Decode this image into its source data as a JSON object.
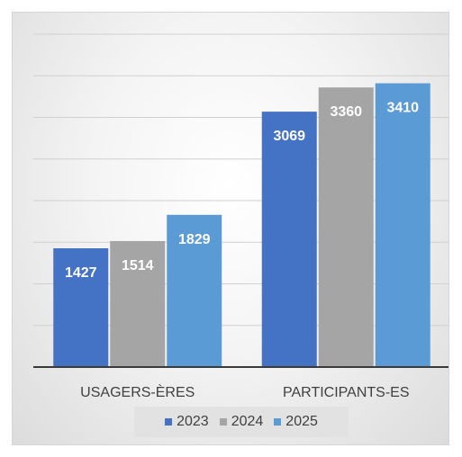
{
  "chart_data": {
    "type": "bar",
    "title": "",
    "xlabel": "",
    "ylabel": "",
    "categories": [
      "USAGERS-ÈRES",
      "PARTICIPANTS-ES"
    ],
    "series": [
      {
        "name": "2023",
        "values": [
          1427,
          3069
        ],
        "color": "#4472c4"
      },
      {
        "name": "2024",
        "values": [
          1514,
          3360
        ],
        "color": "#a5a5a5"
      },
      {
        "name": "2025",
        "values": [
          1829,
          3410
        ],
        "color": "#5b9bd5"
      }
    ],
    "ylim": [
      0,
      4000
    ],
    "y_axis_labels_visible": false,
    "grid": true,
    "data_labels": true,
    "legend_position": "bottom"
  }
}
